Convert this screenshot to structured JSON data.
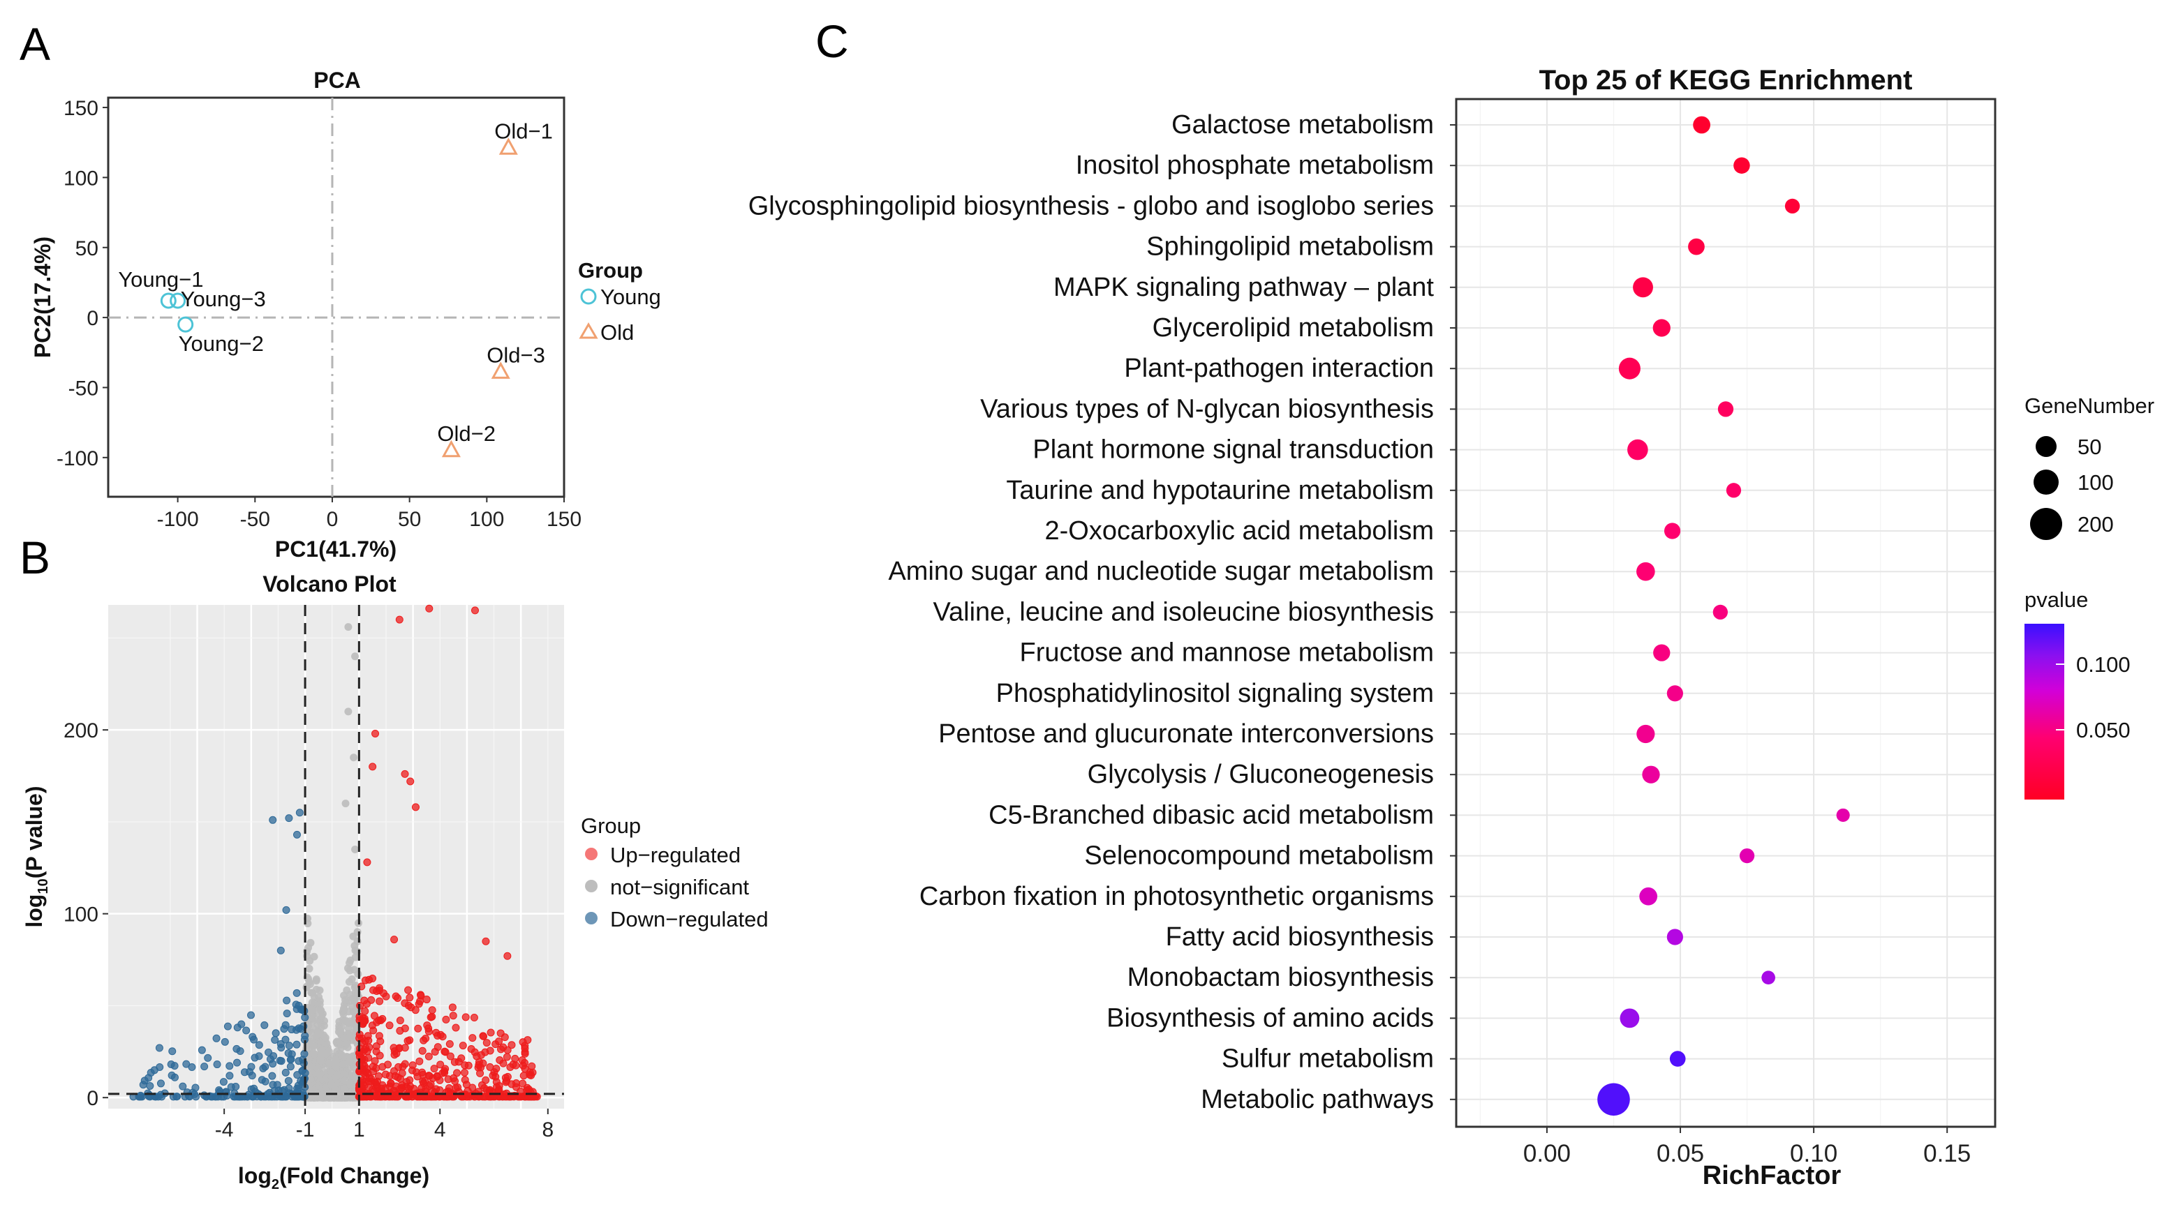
{
  "panel_letters": {
    "a": "A",
    "b": "B",
    "c": "C"
  },
  "colors": {
    "young": "#4dc3d6",
    "old": "#f0a070",
    "up": "#ee1c1c",
    "ns": "#bdbdbd",
    "down": "#2f6a98",
    "pvalue_low": "#ff0024",
    "pvalue_high": "#3a10ff"
  },
  "chart_data": [
    {
      "id": "A",
      "type": "scatter",
      "title": "PCA",
      "xlabel": "PC1(41.7%)",
      "ylabel": "PC2(17.4%)",
      "xlim": [
        -145,
        150
      ],
      "ylim": [
        -128,
        157
      ],
      "xticks": [
        -100,
        -50,
        0,
        50,
        100,
        150
      ],
      "yticks": [
        150,
        100,
        50,
        0,
        -50,
        -100
      ],
      "reference_lines": {
        "x": 0,
        "y": 0,
        "style": "dashdot"
      },
      "legend": {
        "title": "Group",
        "position": "right",
        "entries": [
          {
            "label": "Young",
            "marker": "circle"
          },
          {
            "label": "Old",
            "marker": "triangle"
          }
        ]
      },
      "points": [
        {
          "label": "Young-1",
          "group": "Young",
          "x": -106,
          "y": 12
        },
        {
          "label": "Young-3",
          "group": "Young",
          "x": -100,
          "y": 12
        },
        {
          "label": "Young-2",
          "group": "Young",
          "x": -95,
          "y": -5
        },
        {
          "label": "Old-1",
          "group": "Old",
          "x": 114,
          "y": 121
        },
        {
          "label": "Old-3",
          "group": "Old",
          "x": 109,
          "y": -39
        },
        {
          "label": "Old-2",
          "group": "Old",
          "x": 77,
          "y": -95
        }
      ],
      "point_labels": {
        "Young-1": "Young−1",
        "Young-3": "Young−3",
        "Young-2": "Young−2",
        "Old-1": "Old−1",
        "Old-3": "Old−3",
        "Old-2": "Old−2"
      }
    },
    {
      "id": "B",
      "type": "scatter",
      "title": "Volcano Plot",
      "xlabel_main": "log",
      "xlabel_sub": "2",
      "xlabel_rest": "(Fold Change)",
      "ylabel_main": "log",
      "ylabel_sub": "10",
      "ylabel_rest": "(P value)",
      "xlim": [
        -8.3,
        8.6
      ],
      "ylim": [
        -6,
        268
      ],
      "xticks": [
        -4,
        -1,
        1,
        4,
        8
      ],
      "yticks": [
        200,
        100,
        0
      ],
      "thresholds": {
        "log2fc": [
          -1,
          1
        ],
        "pvalue_line": 2
      },
      "legend": {
        "title": "Group",
        "position": "right",
        "entries": [
          {
            "label": "Up−regulated",
            "group": "up"
          },
          {
            "label": "not−significant",
            "group": "ns"
          },
          {
            "label": "Down−regulated",
            "group": "down"
          }
        ]
      },
      "highlight_points": [
        {
          "x": 1.6,
          "y": 198,
          "group": "up"
        },
        {
          "x": 1.5,
          "y": 180,
          "group": "up"
        },
        {
          "x": 2.7,
          "y": 176,
          "group": "up"
        },
        {
          "x": 2.9,
          "y": 172,
          "group": "up"
        },
        {
          "x": 3.1,
          "y": 158,
          "group": "up"
        },
        {
          "x": 2.5,
          "y": 260,
          "group": "up"
        },
        {
          "x": 3.6,
          "y": 266,
          "group": "up"
        },
        {
          "x": 5.3,
          "y": 265,
          "group": "up"
        },
        {
          "x": 5.7,
          "y": 85,
          "group": "up"
        },
        {
          "x": 6.5,
          "y": 77,
          "group": "up"
        },
        {
          "x": 1.3,
          "y": 128,
          "group": "up"
        },
        {
          "x": 2.3,
          "y": 86,
          "group": "up"
        },
        {
          "x": -2.2,
          "y": 151,
          "group": "down"
        },
        {
          "x": -1.6,
          "y": 152,
          "group": "down"
        },
        {
          "x": -1.3,
          "y": 143,
          "group": "down"
        },
        {
          "x": -1.2,
          "y": 155,
          "group": "down"
        },
        {
          "x": -1.7,
          "y": 102,
          "group": "down"
        },
        {
          "x": -1.9,
          "y": 80,
          "group": "down"
        },
        {
          "x": -6.4,
          "y": 27,
          "group": "down"
        },
        {
          "x": -7.0,
          "y": 7,
          "group": "down"
        },
        {
          "x": 0.6,
          "y": 256,
          "group": "ns"
        },
        {
          "x": 0.85,
          "y": 240,
          "group": "ns"
        },
        {
          "x": 0.6,
          "y": 210,
          "group": "ns"
        },
        {
          "x": 0.8,
          "y": 185,
          "group": "ns"
        },
        {
          "x": 0.5,
          "y": 160,
          "group": "ns"
        },
        {
          "x": 0.85,
          "y": 135,
          "group": "ns"
        }
      ]
    },
    {
      "id": "C",
      "type": "scatter",
      "title": "Top 25 of KEGG Enrichment",
      "xlabel": "RichFactor",
      "ylabel": "",
      "xlim": [
        -0.034,
        0.168
      ],
      "xticks": [
        "0.00",
        "0.05",
        "0.10",
        "0.15"
      ],
      "xtick_values": [
        0,
        0.05,
        0.1,
        0.15
      ],
      "size_legend": {
        "title": "GeneNumber",
        "entries": [
          50,
          100,
          200
        ]
      },
      "color_legend": {
        "title": "pvalue",
        "ticks": [
          "0.100",
          "0.050"
        ],
        "tick_values": [
          0.1,
          0.05
        ],
        "range": [
          0.0,
          0.135
        ]
      },
      "terms": [
        {
          "name": "Galactose metabolism",
          "richfactor": 0.058,
          "genes": 22,
          "pvalue": 0.006
        },
        {
          "name": "Inositol phosphate metabolism",
          "richfactor": 0.073,
          "genes": 17,
          "pvalue": 0.008
        },
        {
          "name": "Glycosphingolipid biosynthesis - globo and isoglobo series",
          "richfactor": 0.092,
          "genes": 10,
          "pvalue": 0.012
        },
        {
          "name": "Sphingolipid metabolism",
          "richfactor": 0.056,
          "genes": 18,
          "pvalue": 0.02
        },
        {
          "name": "MAPK signaling pathway – plant",
          "richfactor": 0.036,
          "genes": 42,
          "pvalue": 0.022
        },
        {
          "name": "Glycerolipid metabolism",
          "richfactor": 0.043,
          "genes": 24,
          "pvalue": 0.028
        },
        {
          "name": "Plant-pathogen interaction",
          "richfactor": 0.031,
          "genes": 55,
          "pvalue": 0.03
        },
        {
          "name": "Various types of N-glycan biosynthesis",
          "richfactor": 0.067,
          "genes": 13,
          "pvalue": 0.036
        },
        {
          "name": "Plant hormone signal transduction",
          "richfactor": 0.034,
          "genes": 46,
          "pvalue": 0.04
        },
        {
          "name": "Taurine and hypotaurine metabolism",
          "richfactor": 0.07,
          "genes": 10,
          "pvalue": 0.043
        },
        {
          "name": "2-Oxocarboxylic acid metabolism",
          "richfactor": 0.047,
          "genes": 16,
          "pvalue": 0.046
        },
        {
          "name": "Amino sugar and nucleotide sugar metabolism",
          "richfactor": 0.037,
          "genes": 30,
          "pvalue": 0.048
        },
        {
          "name": "Valine, leucine and isoleucine biosynthesis",
          "richfactor": 0.065,
          "genes": 10,
          "pvalue": 0.052
        },
        {
          "name": "Fructose and mannose metabolism",
          "richfactor": 0.043,
          "genes": 20,
          "pvalue": 0.053
        },
        {
          "name": "Phosphatidylinositol signaling system",
          "richfactor": 0.048,
          "genes": 16,
          "pvalue": 0.056
        },
        {
          "name": "Pentose and glucuronate interconversions",
          "richfactor": 0.037,
          "genes": 28,
          "pvalue": 0.058
        },
        {
          "name": "Glycolysis / Gluconeogenesis",
          "richfactor": 0.039,
          "genes": 24,
          "pvalue": 0.063
        },
        {
          "name": "C5-Branched dibasic acid metabolism",
          "richfactor": 0.111,
          "genes": 5,
          "pvalue": 0.068
        },
        {
          "name": "Selenocompound metabolism",
          "richfactor": 0.075,
          "genes": 10,
          "pvalue": 0.07
        },
        {
          "name": "Carbon fixation in photosynthetic organisms",
          "richfactor": 0.038,
          "genes": 26,
          "pvalue": 0.075
        },
        {
          "name": "Fatty acid biosynthesis",
          "richfactor": 0.048,
          "genes": 16,
          "pvalue": 0.095
        },
        {
          "name": "Monobactam biosynthesis",
          "richfactor": 0.083,
          "genes": 6,
          "pvalue": 0.1
        },
        {
          "name": "Biosynthesis of amino acids",
          "richfactor": 0.031,
          "genes": 36,
          "pvalue": 0.105
        },
        {
          "name": "Sulfur metabolism",
          "richfactor": 0.049,
          "genes": 14,
          "pvalue": 0.128
        },
        {
          "name": "Metabolic pathways",
          "richfactor": 0.025,
          "genes": 200,
          "pvalue": 0.128
        }
      ]
    }
  ]
}
